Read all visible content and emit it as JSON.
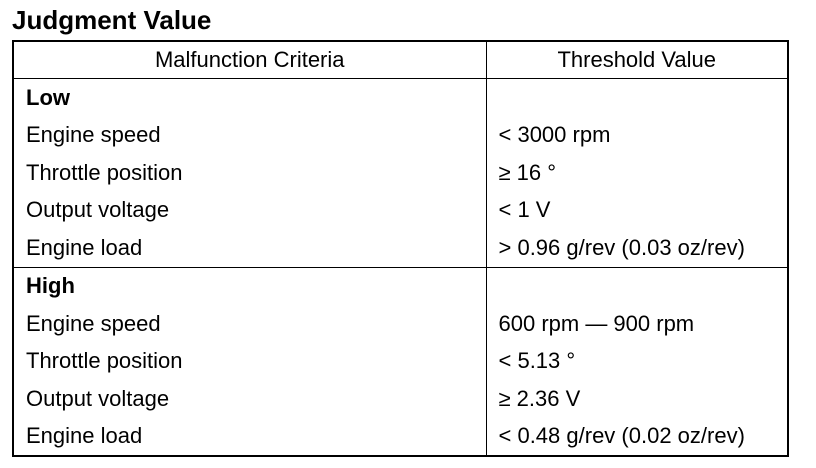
{
  "title": "Judgment Value",
  "table": {
    "headers": {
      "criteria": "Malfunction Criteria",
      "threshold": "Threshold Value"
    },
    "groups": [
      {
        "label": "Low",
        "rows": [
          {
            "criteria": "Engine speed",
            "threshold": "< 3000 rpm"
          },
          {
            "criteria": "Throttle position",
            "threshold": "≥ 16 °"
          },
          {
            "criteria": "Output voltage",
            "threshold": "< 1 V"
          },
          {
            "criteria": "Engine load",
            "threshold": "> 0.96 g/rev (0.03 oz/rev)"
          }
        ]
      },
      {
        "label": "High",
        "rows": [
          {
            "criteria": "Engine speed",
            "threshold": "600 rpm — 900 rpm"
          },
          {
            "criteria": "Throttle position",
            "threshold": "< 5.13 °"
          },
          {
            "criteria": "Output voltage",
            "threshold": "≥ 2.36 V"
          },
          {
            "criteria": "Engine load",
            "threshold": "< 0.48 g/rev (0.02 oz/rev)"
          }
        ]
      }
    ]
  }
}
